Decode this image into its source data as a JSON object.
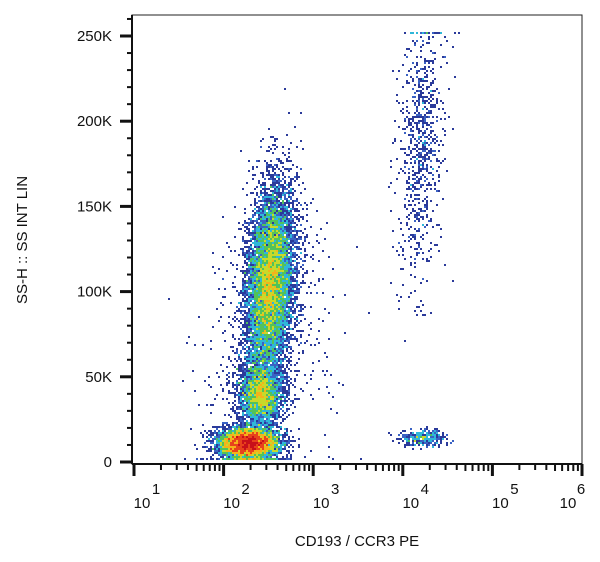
{
  "chart_data": {
    "type": "scatter",
    "subtype": "flow-cytometry-density-dot-plot",
    "xlabel": "CD193 / CCR3 PE",
    "ylabel": "SS-H :: SS INT LIN",
    "x_scale": "log",
    "xlim": [
      10,
      1000000
    ],
    "x_ticks": [
      {
        "base": "10",
        "exp": "1"
      },
      {
        "base": "10",
        "exp": "2"
      },
      {
        "base": "10",
        "exp": "3"
      },
      {
        "base": "10",
        "exp": "4"
      },
      {
        "base": "10",
        "exp": "5"
      },
      {
        "base": "10",
        "exp": "6"
      }
    ],
    "y_scale": "linear",
    "ylim": [
      0,
      262000
    ],
    "y_ticks": [
      "0",
      "50K",
      "100K",
      "150K",
      "200K",
      "250K"
    ],
    "y_tick_values": [
      0,
      50000,
      100000,
      150000,
      200000,
      250000
    ],
    "grid": false,
    "colormap": [
      "#2b3a9a",
      "#3a62c4",
      "#2fb7d9",
      "#52c25a",
      "#c8d92a",
      "#f5b21b",
      "#e8421c",
      "#c8101a"
    ],
    "populations": [
      {
        "x_center": 190,
        "x_sd_decades": 0.16,
        "y_center": 11000,
        "y_sd": 4500,
        "events": 6500
      },
      {
        "x_center": 260,
        "x_sd_decades": 0.12,
        "y_center": 40000,
        "y_sd": 9000,
        "events": 2600
      },
      {
        "x_center": 330,
        "x_sd_decades": 0.13,
        "y_center": 105000,
        "y_sd": 28000,
        "events": 9000
      },
      {
        "x_center": 16000,
        "x_sd_decades": 0.12,
        "y_center": 185000,
        "y_sd": 40000,
        "events": 800
      },
      {
        "x_center": 17000,
        "x_sd_decades": 0.13,
        "y_center": 14000,
        "y_sd": 2500,
        "events": 350
      },
      {
        "x_center": 300,
        "x_sd_decades": 0.35,
        "y_center": 60000,
        "y_sd": 45000,
        "events": 700
      }
    ]
  }
}
